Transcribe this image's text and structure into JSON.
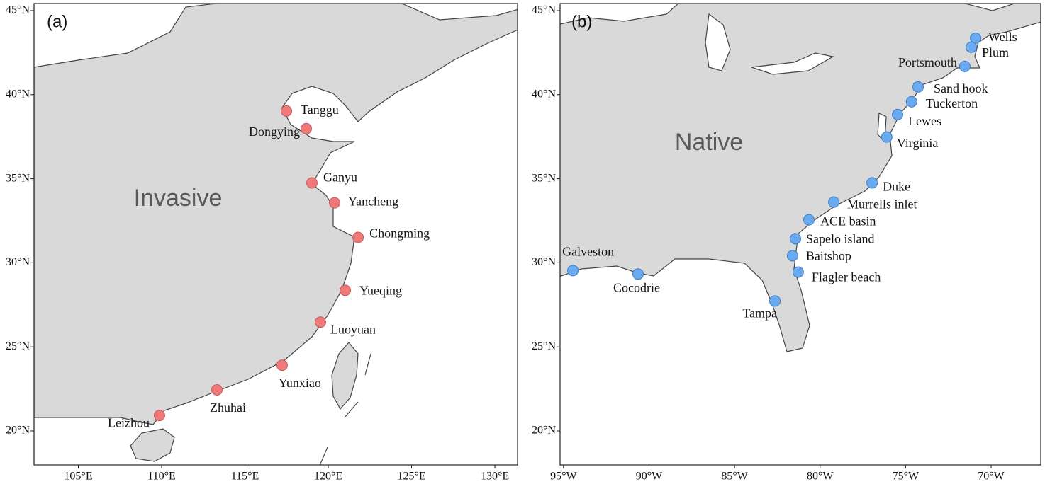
{
  "maps": [
    {
      "panel_label": "(a)",
      "region_label": "Invasive",
      "xlim": [
        102.34,
        131.36
      ],
      "ylim": [
        17.98,
        45.42
      ],
      "xticks": [
        {
          "value": 105,
          "label": "105°E"
        },
        {
          "value": 110,
          "label": "110°E"
        },
        {
          "value": 115,
          "label": "115°E"
        },
        {
          "value": 120,
          "label": "120°E"
        },
        {
          "value": 125,
          "label": "125°E"
        },
        {
          "value": 130,
          "label": "130°E"
        }
      ],
      "yticks": [
        {
          "value": 20,
          "label": "20°N"
        },
        {
          "value": 25,
          "label": "25°N"
        },
        {
          "value": 30,
          "label": "30°N"
        },
        {
          "value": 35,
          "label": "35°N"
        },
        {
          "value": 40,
          "label": "40°N"
        },
        {
          "value": 45,
          "label": "45°N"
        }
      ],
      "marker_color": "#f07a7a",
      "sites": [
        {
          "name": "Tanggu",
          "lon": 117.49,
          "lat": 39.03
        },
        {
          "name": "Dongying",
          "lon": 118.68,
          "lat": 37.98
        },
        {
          "name": "Ganyu",
          "lon": 119.02,
          "lat": 34.75
        },
        {
          "name": "Yancheng",
          "lon": 120.38,
          "lat": 33.57
        },
        {
          "name": "Chongming",
          "lon": 121.79,
          "lat": 31.51
        },
        {
          "name": "Yueqing",
          "lon": 121.02,
          "lat": 28.36
        },
        {
          "name": "Luoyuan",
          "lon": 119.53,
          "lat": 26.47
        },
        {
          "name": "Yunxiao",
          "lon": 117.23,
          "lat": 23.91
        },
        {
          "name": "Zhuhai",
          "lon": 113.32,
          "lat": 22.44
        },
        {
          "name": "Leizhou",
          "lon": 109.87,
          "lat": 20.92
        }
      ]
    },
    {
      "panel_label": "(b)",
      "region_label": "Native",
      "xlim": [
        -95.2,
        -67.1
      ],
      "ylim": [
        17.98,
        45.42
      ],
      "xticks": [
        {
          "value": -95,
          "label": "95°W"
        },
        {
          "value": -90,
          "label": "90°W"
        },
        {
          "value": -85,
          "label": "85°W"
        },
        {
          "value": -80,
          "label": "80°W"
        },
        {
          "value": -75,
          "label": "75°W"
        },
        {
          "value": -70,
          "label": "70°W"
        }
      ],
      "yticks": [
        {
          "value": 20,
          "label": "20°N"
        },
        {
          "value": 25,
          "label": "25°N"
        },
        {
          "value": 30,
          "label": "30°N"
        },
        {
          "value": 35,
          "label": "35°N"
        },
        {
          "value": 40,
          "label": "40°N"
        },
        {
          "value": 45,
          "label": "45°N"
        }
      ],
      "marker_color": "#6aaaf0",
      "sites": [
        {
          "name": "Wells",
          "lon": -70.91,
          "lat": 43.36
        },
        {
          "name": "Plum",
          "lon": -71.16,
          "lat": 42.82
        },
        {
          "name": "Portsmouth",
          "lon": -71.54,
          "lat": 41.68
        },
        {
          "name": "Sand hook",
          "lon": -74.27,
          "lat": 40.46
        },
        {
          "name": "Tuckerton",
          "lon": -74.65,
          "lat": 39.58
        },
        {
          "name": "Lewes",
          "lon": -75.47,
          "lat": 38.82
        },
        {
          "name": "Virginia",
          "lon": -76.1,
          "lat": 37.48
        },
        {
          "name": "Duke",
          "lon": -76.96,
          "lat": 34.75
        },
        {
          "name": "Murrells inlet",
          "lon": -79.2,
          "lat": 33.61
        },
        {
          "name": "ACE basin",
          "lon": -80.65,
          "lat": 32.56
        },
        {
          "name": "Sapelo island",
          "lon": -81.44,
          "lat": 31.43
        },
        {
          "name": "Baitshop",
          "lon": -81.61,
          "lat": 30.42
        },
        {
          "name": "Flagler beach",
          "lon": -81.28,
          "lat": 29.45
        },
        {
          "name": "Tampa",
          "lon": -82.64,
          "lat": 27.73
        },
        {
          "name": "Cocodrie",
          "lon": -90.64,
          "lat": 29.33
        },
        {
          "name": "Galveston",
          "lon": -94.45,
          "lat": 29.54
        }
      ]
    }
  ]
}
